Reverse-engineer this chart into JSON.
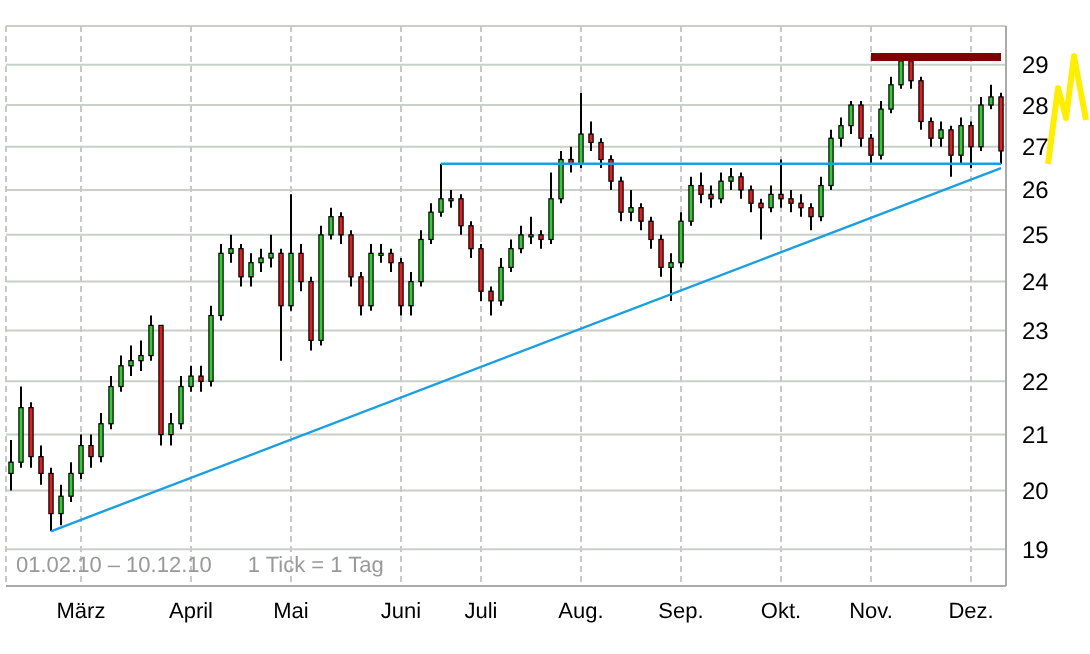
{
  "chart_data": {
    "type": "candlestick",
    "categories": [
      null,
      null,
      null,
      null,
      null,
      null,
      null,
      "März",
      null,
      null,
      null,
      null,
      null,
      null,
      null,
      null,
      null,
      null,
      "April",
      null,
      null,
      null,
      null,
      null,
      null,
      null,
      null,
      null,
      "Mai",
      null,
      null,
      null,
      null,
      null,
      null,
      null,
      null,
      null,
      null,
      "Juni",
      null,
      null,
      null,
      null,
      null,
      null,
      null,
      "Juli",
      null,
      null,
      null,
      null,
      null,
      null,
      null,
      null,
      null,
      "Aug.",
      null,
      null,
      null,
      null,
      null,
      null,
      null,
      null,
      null,
      "Sep.",
      null,
      null,
      null,
      null,
      null,
      null,
      null,
      null,
      null,
      "Okt.",
      null,
      null,
      null,
      null,
      null,
      null,
      null,
      null,
      "Nov.",
      null,
      null,
      null,
      null,
      null,
      null,
      null,
      null,
      null,
      "Dez.",
      null,
      null,
      null
    ],
    "ohlc": [
      [
        20.3,
        20.9,
        20.0,
        20.5
      ],
      [
        20.5,
        21.9,
        20.4,
        21.5
      ],
      [
        21.5,
        21.6,
        20.4,
        20.6
      ],
      [
        20.6,
        20.8,
        20.1,
        20.3
      ],
      [
        20.3,
        20.4,
        19.3,
        19.6
      ],
      [
        19.6,
        20.1,
        19.4,
        19.9
      ],
      [
        19.9,
        20.5,
        19.8,
        20.3
      ],
      [
        20.3,
        21.0,
        20.2,
        20.8
      ],
      [
        20.8,
        21.0,
        20.4,
        20.6
      ],
      [
        20.6,
        21.4,
        20.5,
        21.2
      ],
      [
        21.2,
        22.1,
        21.1,
        21.9
      ],
      [
        21.9,
        22.5,
        21.8,
        22.3
      ],
      [
        22.3,
        22.7,
        22.1,
        22.4
      ],
      [
        22.4,
        22.8,
        22.2,
        22.5
      ],
      [
        22.5,
        23.3,
        22.4,
        23.1
      ],
      [
        23.1,
        23.1,
        20.8,
        21.0
      ],
      [
        21.0,
        21.4,
        20.8,
        21.2
      ],
      [
        21.2,
        22.1,
        21.1,
        21.9
      ],
      [
        21.9,
        22.3,
        21.8,
        22.1
      ],
      [
        22.1,
        22.3,
        21.8,
        22.0
      ],
      [
        22.0,
        23.5,
        21.9,
        23.3
      ],
      [
        23.3,
        24.8,
        23.2,
        24.6
      ],
      [
        24.6,
        25.0,
        24.4,
        24.7
      ],
      [
        24.7,
        24.8,
        23.9,
        24.1
      ],
      [
        24.1,
        24.6,
        23.9,
        24.4
      ],
      [
        24.4,
        24.7,
        24.2,
        24.5
      ],
      [
        24.5,
        25.0,
        24.3,
        24.6
      ],
      [
        24.6,
        24.7,
        22.4,
        23.5
      ],
      [
        23.5,
        25.9,
        23.4,
        24.6
      ],
      [
        24.6,
        24.8,
        23.8,
        24.0
      ],
      [
        24.0,
        24.1,
        22.6,
        22.8
      ],
      [
        22.8,
        25.2,
        22.7,
        25.0
      ],
      [
        25.0,
        25.6,
        24.9,
        25.4
      ],
      [
        25.4,
        25.5,
        24.8,
        25.0
      ],
      [
        25.0,
        25.1,
        23.9,
        24.1
      ],
      [
        24.1,
        24.2,
        23.3,
        23.5
      ],
      [
        23.5,
        24.8,
        23.4,
        24.6
      ],
      [
        24.6,
        24.8,
        24.4,
        24.6
      ],
      [
        24.6,
        24.7,
        24.2,
        24.4
      ],
      [
        24.4,
        24.5,
        23.3,
        23.5
      ],
      [
        23.5,
        24.2,
        23.3,
        24.0
      ],
      [
        24.0,
        25.1,
        23.9,
        24.9
      ],
      [
        24.9,
        25.7,
        24.8,
        25.5
      ],
      [
        25.5,
        26.6,
        25.4,
        25.8
      ],
      [
        25.8,
        26.0,
        25.6,
        25.8
      ],
      [
        25.8,
        25.9,
        25.0,
        25.2
      ],
      [
        25.2,
        25.3,
        24.5,
        24.7
      ],
      [
        24.7,
        24.8,
        23.6,
        23.8
      ],
      [
        23.8,
        23.9,
        23.3,
        23.6
      ],
      [
        23.6,
        24.5,
        23.5,
        24.3
      ],
      [
        24.3,
        24.9,
        24.2,
        24.7
      ],
      [
        24.7,
        25.2,
        24.6,
        25.0
      ],
      [
        25.0,
        25.4,
        24.8,
        25.0
      ],
      [
        25.0,
        25.1,
        24.7,
        24.9
      ],
      [
        24.9,
        26.4,
        24.8,
        25.8
      ],
      [
        25.8,
        26.9,
        25.7,
        26.7
      ],
      [
        26.7,
        27.0,
        26.4,
        26.6
      ],
      [
        26.6,
        28.3,
        26.5,
        27.3
      ],
      [
        27.3,
        27.6,
        26.9,
        27.1
      ],
      [
        27.1,
        27.2,
        26.5,
        26.7
      ],
      [
        26.7,
        26.8,
        26.0,
        26.2
      ],
      [
        26.2,
        26.3,
        25.3,
        25.5
      ],
      [
        25.5,
        26.0,
        25.3,
        25.6
      ],
      [
        25.6,
        25.7,
        25.1,
        25.3
      ],
      [
        25.3,
        25.4,
        24.7,
        24.9
      ],
      [
        24.9,
        25.0,
        24.1,
        24.3
      ],
      [
        24.3,
        24.6,
        23.6,
        24.4
      ],
      [
        24.4,
        25.5,
        24.3,
        25.3
      ],
      [
        25.3,
        26.3,
        25.2,
        26.1
      ],
      [
        26.1,
        26.4,
        25.7,
        25.9
      ],
      [
        25.9,
        26.1,
        25.6,
        25.8
      ],
      [
        25.8,
        26.4,
        25.7,
        26.2
      ],
      [
        26.2,
        26.5,
        26.0,
        26.3
      ],
      [
        26.3,
        26.4,
        25.8,
        26.0
      ],
      [
        26.0,
        26.1,
        25.5,
        25.7
      ],
      [
        25.7,
        25.8,
        24.9,
        25.6
      ],
      [
        25.6,
        26.1,
        25.5,
        25.9
      ],
      [
        25.9,
        26.7,
        25.6,
        25.8
      ],
      [
        25.8,
        26.0,
        25.5,
        25.7
      ],
      [
        25.7,
        25.9,
        25.4,
        25.6
      ],
      [
        25.6,
        25.7,
        25.1,
        25.4
      ],
      [
        25.4,
        26.3,
        25.3,
        26.1
      ],
      [
        26.1,
        27.4,
        26.0,
        27.2
      ],
      [
        27.2,
        27.7,
        27.0,
        27.5
      ],
      [
        27.5,
        28.1,
        27.3,
        28.0
      ],
      [
        28.0,
        28.1,
        27.0,
        27.2
      ],
      [
        27.2,
        27.3,
        26.6,
        26.8
      ],
      [
        26.8,
        28.1,
        26.7,
        27.9
      ],
      [
        27.9,
        28.7,
        27.8,
        28.5
      ],
      [
        28.5,
        29.2,
        28.4,
        29.1
      ],
      [
        29.1,
        29.2,
        28.4,
        28.6
      ],
      [
        28.6,
        28.7,
        27.4,
        27.6
      ],
      [
        27.6,
        27.7,
        27.0,
        27.2
      ],
      [
        27.2,
        27.6,
        27.0,
        27.4
      ],
      [
        27.4,
        27.5,
        26.3,
        26.8
      ],
      [
        26.8,
        27.7,
        26.6,
        27.5
      ],
      [
        27.5,
        27.6,
        26.5,
        27.0
      ],
      [
        27.0,
        28.2,
        26.9,
        28.0
      ],
      [
        28.0,
        28.5,
        27.9,
        28.2
      ],
      [
        28.2,
        28.3,
        26.6,
        26.9
      ]
    ],
    "colors": [
      "#33cc33",
      "#33cc33",
      "#e02020",
      "#e02020",
      "#e02020",
      "#33cc33",
      "#33cc33",
      "#33cc33",
      "#e02020",
      "#33cc33",
      "#33cc33",
      "#33cc33",
      "#33cc33",
      "#33cc33",
      "#33cc33",
      "#e02020",
      "#33cc33",
      "#33cc33",
      "#33cc33",
      "#e02020",
      "#33cc33",
      "#33cc33",
      "#33cc33",
      "#e02020",
      "#33cc33",
      "#33cc33",
      "#33cc33",
      "#e02020",
      "#33cc33",
      "#e02020",
      "#e02020",
      "#33cc33",
      "#33cc33",
      "#e02020",
      "#e02020",
      "#e02020",
      "#33cc33",
      "#33cc33",
      "#e02020",
      "#e02020",
      "#33cc33",
      "#33cc33",
      "#33cc33",
      "#33cc33",
      "#33cc33",
      "#e02020",
      "#e02020",
      "#e02020",
      "#e02020",
      "#33cc33",
      "#33cc33",
      "#33cc33",
      "#33cc33",
      "#e02020",
      "#33cc33",
      "#33cc33",
      "#e02020",
      "#33cc33",
      "#e02020",
      "#e02020",
      "#e02020",
      "#e02020",
      "#33cc33",
      "#e02020",
      "#e02020",
      "#e02020",
      "#33cc33",
      "#33cc33",
      "#33cc33",
      "#e02020",
      "#e02020",
      "#33cc33",
      "#33cc33",
      "#e02020",
      "#e02020",
      "#e02020",
      "#33cc33",
      "#e02020",
      "#e02020",
      "#e02020",
      "#e02020",
      "#33cc33",
      "#33cc33",
      "#33cc33",
      "#33cc33",
      "#e02020",
      "#e02020",
      "#33cc33",
      "#33cc33",
      "#33cc33",
      "#e02020",
      "#e02020",
      "#e02020",
      "#33cc33",
      "#e02020",
      "#33cc33",
      "#e02020",
      "#33cc33",
      "#33cc33",
      "#e02020"
    ],
    "series": [
      {
        "type": "line",
        "color": "#1aa0e0",
        "values": [
          null,
          null,
          null,
          null,
          19.3,
          null,
          null,
          null,
          null,
          null,
          null,
          null,
          null,
          null,
          null,
          null,
          null,
          null,
          null,
          null,
          null,
          null,
          null,
          null,
          null,
          null,
          null,
          null,
          null,
          null,
          null,
          null,
          null,
          null,
          null,
          null,
          null,
          null,
          null,
          null,
          null,
          null,
          null,
          null,
          null,
          null,
          null,
          null,
          null,
          null,
          null,
          null,
          null,
          null,
          null,
          null,
          null,
          null,
          null,
          null,
          null,
          null,
          null,
          null,
          null,
          null,
          null,
          null,
          null,
          null,
          null,
          null,
          null,
          null,
          null,
          null,
          null,
          null,
          null,
          null,
          null,
          null,
          null,
          null,
          null,
          null,
          null,
          null,
          null,
          null,
          null,
          null,
          null,
          null,
          null,
          null,
          null,
          null,
          null,
          26.5
        ]
      },
      {
        "type": "line",
        "color": "#1aa0e0",
        "values": [
          null,
          null,
          null,
          null,
          null,
          null,
          null,
          null,
          null,
          null,
          null,
          null,
          null,
          null,
          null,
          null,
          null,
          null,
          null,
          null,
          null,
          null,
          null,
          null,
          null,
          null,
          null,
          null,
          null,
          null,
          null,
          null,
          null,
          null,
          null,
          null,
          null,
          null,
          null,
          null,
          null,
          null,
          null,
          26.6,
          null,
          null,
          null,
          null,
          null,
          null,
          null,
          null,
          null,
          null,
          null,
          null,
          null,
          null,
          null,
          null,
          null,
          null,
          null,
          null,
          null,
          null,
          null,
          null,
          null,
          null,
          null,
          null,
          null,
          null,
          null,
          null,
          null,
          null,
          null,
          null,
          null,
          null,
          null,
          null,
          null,
          null,
          null,
          null,
          null,
          null,
          null,
          null,
          null,
          null,
          null,
          null,
          null,
          null,
          null,
          26.6
        ]
      },
      {
        "type": "line",
        "color": "#800000",
        "values": [
          null,
          null,
          null,
          null,
          null,
          null,
          null,
          null,
          null,
          null,
          null,
          null,
          null,
          null,
          null,
          null,
          null,
          null,
          null,
          null,
          null,
          null,
          null,
          null,
          null,
          null,
          null,
          null,
          null,
          null,
          null,
          null,
          null,
          null,
          null,
          null,
          null,
          null,
          null,
          null,
          null,
          null,
          null,
          null,
          null,
          null,
          null,
          null,
          null,
          null,
          null,
          null,
          null,
          null,
          null,
          null,
          null,
          null,
          null,
          null,
          null,
          null,
          null,
          null,
          null,
          null,
          null,
          null,
          null,
          null,
          null,
          null,
          null,
          null,
          null,
          null,
          null,
          null,
          null,
          null,
          null,
          null,
          null,
          null,
          null,
          null,
          29.2,
          null,
          null,
          null,
          null,
          null,
          null,
          null,
          null,
          null,
          null,
          null,
          null,
          29.2
        ]
      }
    ],
    "ylim": [
      18.4,
      30
    ],
    "yticks": [
      19,
      20,
      21,
      22,
      23,
      24,
      25,
      26,
      27,
      28,
      29
    ],
    "log": true,
    "grid": true,
    "annotations": [
      "01.02.10 – 10.12.10",
      "1 Tick = 1 Tag"
    ]
  }
}
